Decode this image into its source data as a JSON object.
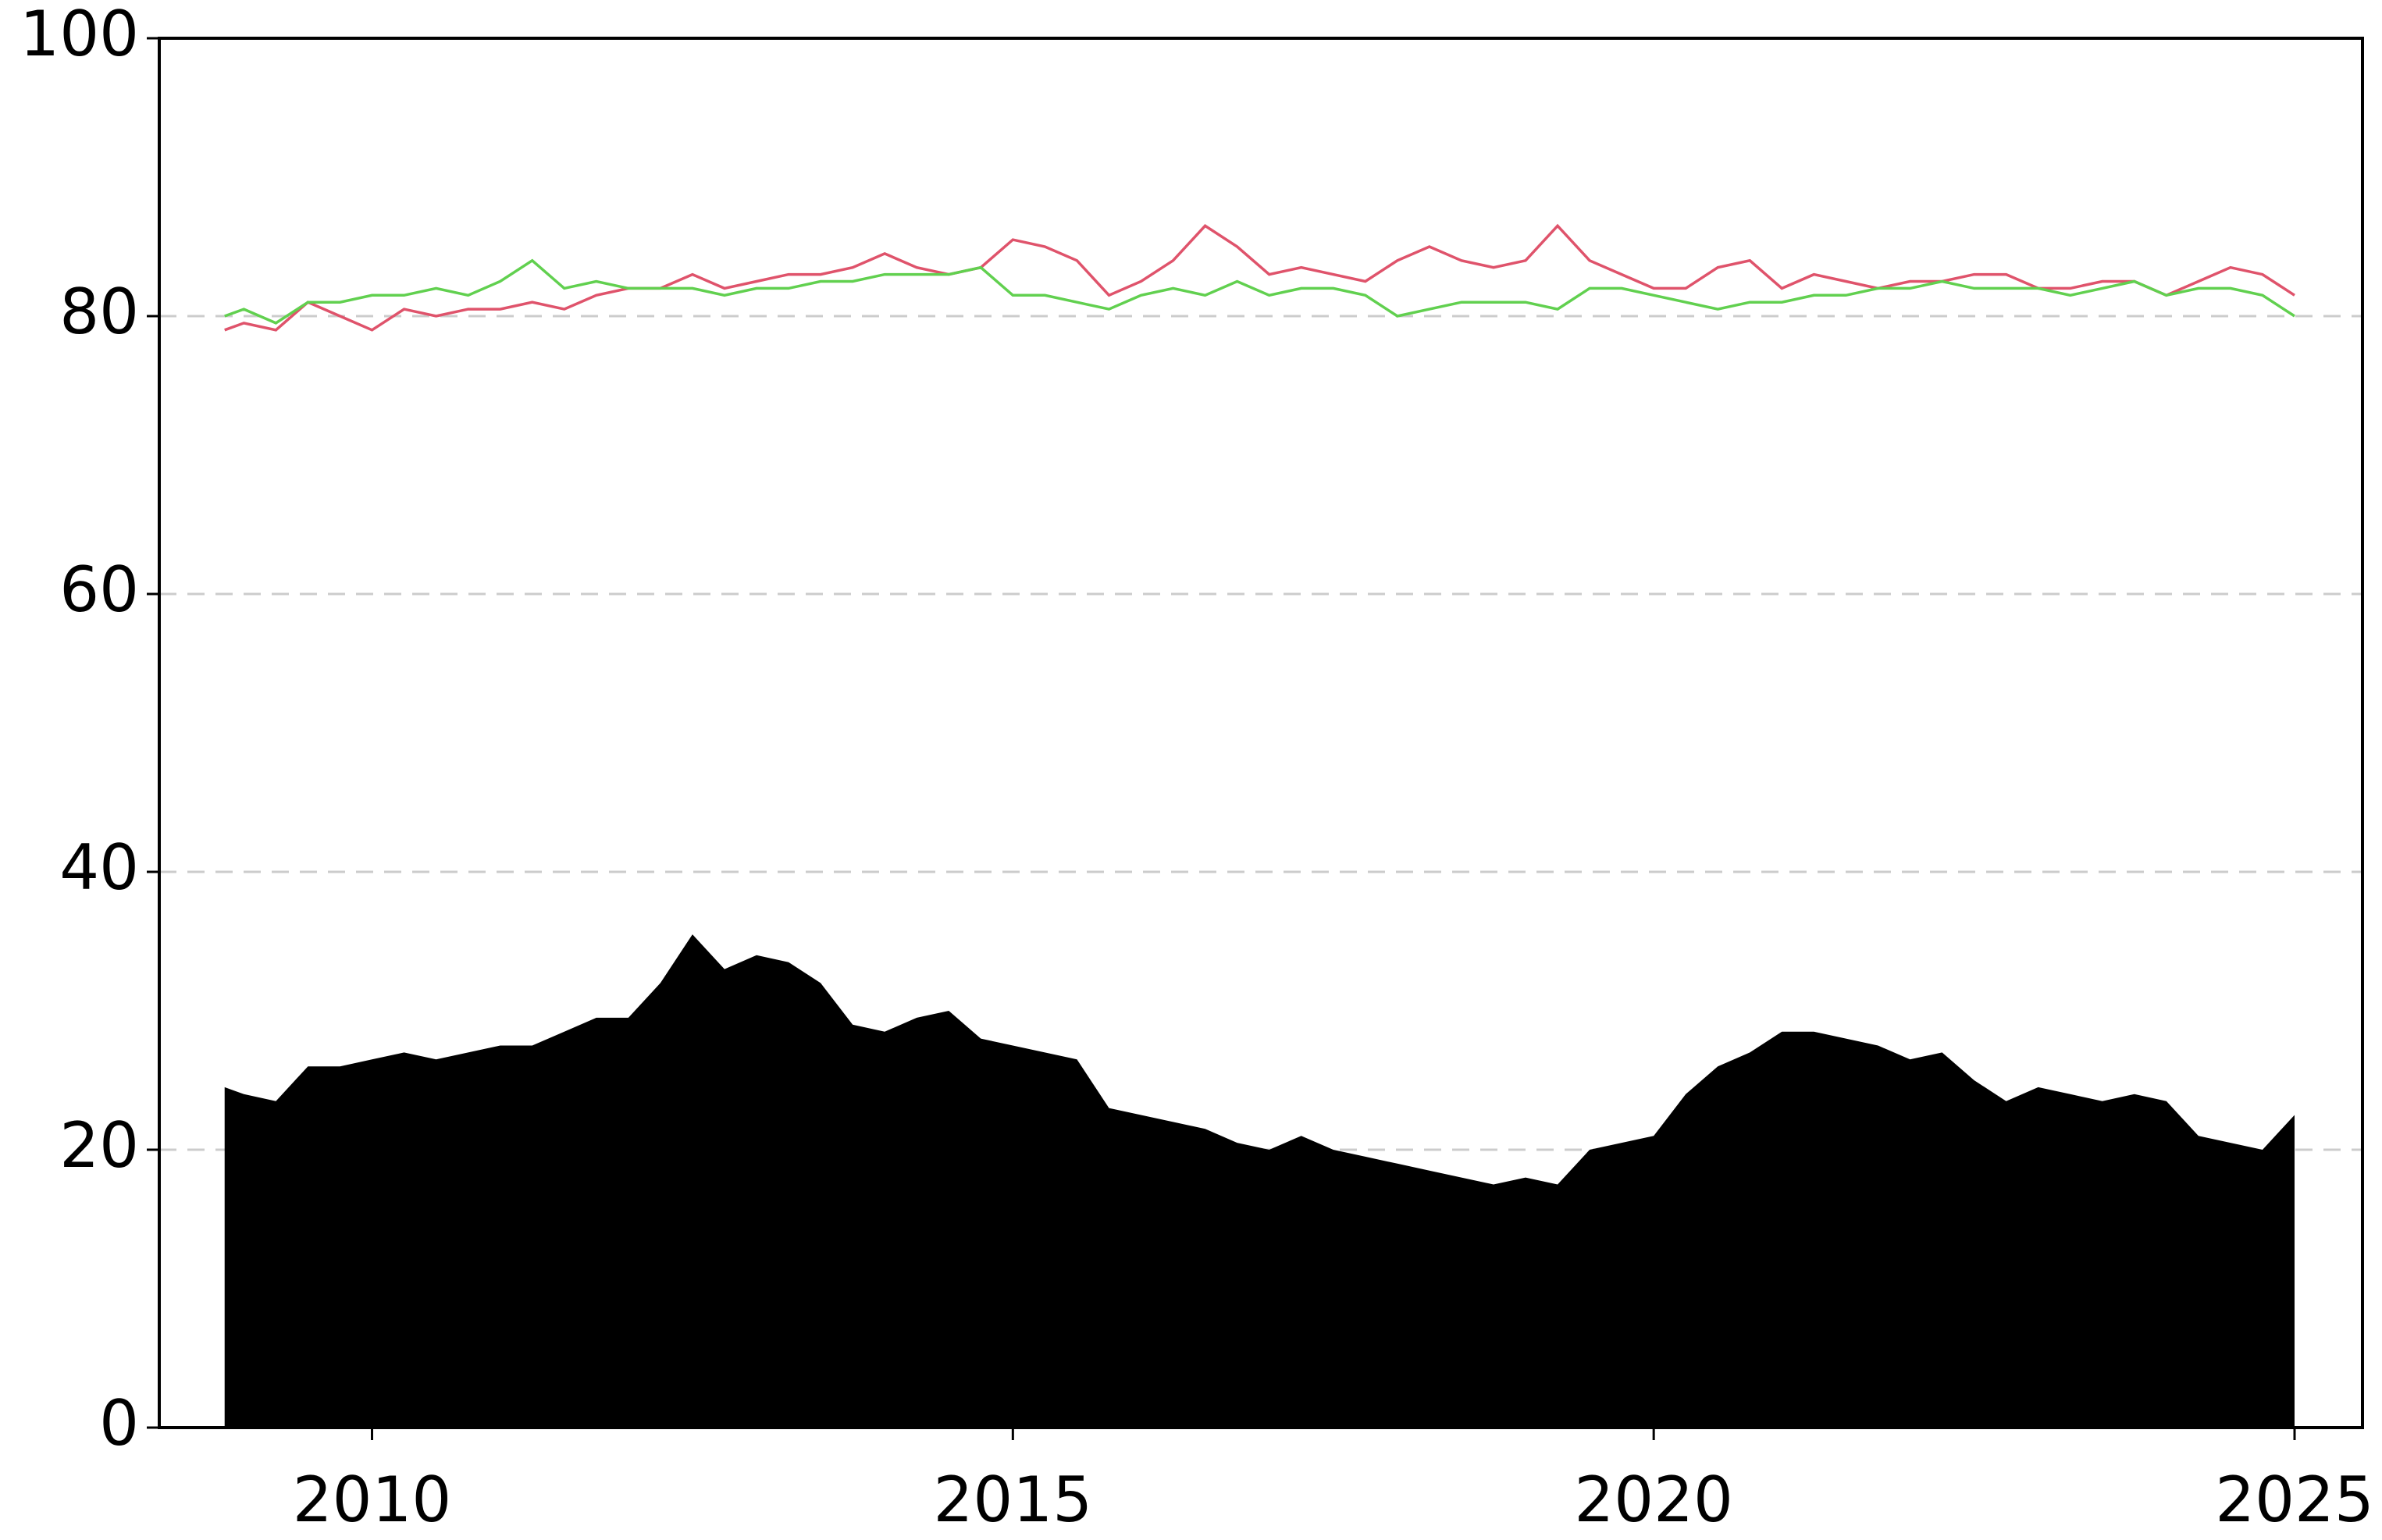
{
  "chart_data": {
    "type": "line",
    "x": [
      2008.85,
      2009.0,
      2009.25,
      2009.5,
      2009.75,
      2010.0,
      2010.25,
      2010.5,
      2010.75,
      2011.0,
      2011.25,
      2011.5,
      2011.75,
      2012.0,
      2012.25,
      2012.5,
      2012.75,
      2013.0,
      2013.25,
      2013.5,
      2013.75,
      2014.0,
      2014.25,
      2014.5,
      2014.75,
      2015.0,
      2015.25,
      2015.5,
      2015.75,
      2016.0,
      2016.25,
      2016.5,
      2016.75,
      2017.0,
      2017.25,
      2017.5,
      2017.75,
      2018.0,
      2018.25,
      2018.5,
      2018.75,
      2019.0,
      2019.25,
      2019.5,
      2019.75,
      2020.0,
      2020.25,
      2020.5,
      2020.75,
      2021.0,
      2021.25,
      2021.5,
      2021.75,
      2022.0,
      2022.25,
      2022.5,
      2022.75,
      2023.0,
      2023.25,
      2023.5,
      2023.75,
      2024.0,
      2024.25,
      2024.5,
      2024.75,
      2025.0
    ],
    "series": [
      {
        "type": "area",
        "color": "#000000",
        "values": [
          24.5,
          24,
          23.5,
          26,
          26,
          26.5,
          27,
          26.5,
          27,
          27.5,
          27.5,
          28.5,
          29.5,
          29.5,
          32,
          35.5,
          33,
          34,
          33.5,
          32,
          29,
          28.5,
          29.5,
          30,
          28,
          27.5,
          27,
          26.5,
          23,
          22.5,
          22,
          21.5,
          20.5,
          20,
          21,
          20,
          19.5,
          19,
          18.5,
          18,
          17.5,
          18,
          17.5,
          20,
          20.5,
          21,
          24,
          26,
          27,
          28.5,
          28.5,
          28,
          27.5,
          26.5,
          27,
          25,
          23.5,
          24.5,
          24,
          23.5,
          24,
          23.5,
          21,
          20.5,
          20,
          22.5
        ]
      },
      {
        "type": "line",
        "color": "#df536b",
        "values": [
          79,
          79.5,
          79,
          81,
          80,
          79,
          80.5,
          80,
          80.5,
          80.5,
          81,
          80.5,
          81.5,
          82,
          82,
          83,
          82,
          82.5,
          83,
          83,
          83.5,
          84.5,
          83.5,
          83,
          83.5,
          85.5,
          85,
          84,
          81.5,
          82.5,
          84,
          86.5,
          85,
          83,
          83.5,
          83,
          82.5,
          84,
          85,
          84,
          83.5,
          84,
          86.5,
          84,
          83,
          82,
          82,
          83.5,
          84,
          82,
          83,
          82.5,
          82,
          82.5,
          82.5,
          83,
          83,
          82,
          82,
          82.5,
          82.5,
          81.5,
          82.5,
          83.5,
          83,
          81.5
        ]
      },
      {
        "type": "line",
        "color": "#61d04f",
        "values": [
          80,
          80.5,
          79.5,
          81,
          81,
          81.5,
          81.5,
          82,
          81.5,
          82.5,
          84,
          82,
          82.5,
          82,
          82,
          82,
          81.5,
          82,
          82,
          82.5,
          82.5,
          83,
          83,
          83,
          83.5,
          81.5,
          81.5,
          81,
          80.5,
          81.5,
          82,
          81.5,
          82.5,
          81.5,
          82,
          82,
          81.5,
          80,
          80.5,
          81,
          81,
          81,
          80.5,
          82,
          82,
          81.5,
          81,
          80.5,
          81,
          81,
          81.5,
          81.5,
          82,
          82,
          82.5,
          82,
          82,
          82,
          81.5,
          82,
          82.5,
          81.5,
          82,
          82,
          81.5,
          80
        ]
      }
    ],
    "xlim": [
      2008.34,
      2025.53
    ],
    "xticks": [
      2010,
      2015,
      2020,
      2025
    ],
    "ylim": [
      0,
      100
    ],
    "yticks": [
      0,
      20,
      40,
      60,
      80,
      100
    ],
    "grid": true
  }
}
